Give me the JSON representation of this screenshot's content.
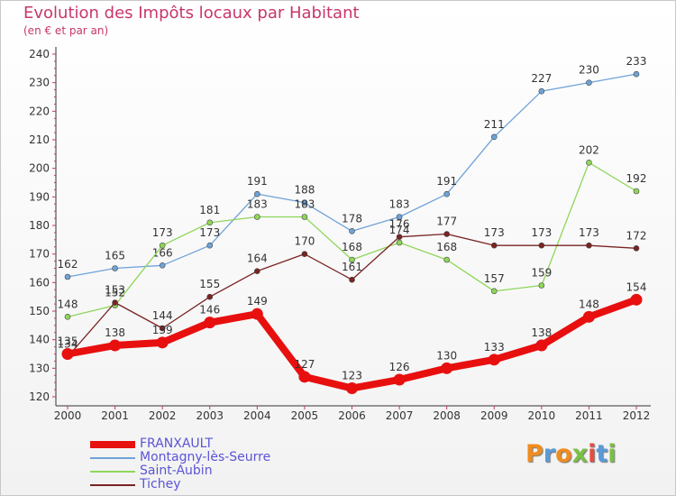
{
  "title": "Evolution des Impôts locaux par Habitant",
  "subtitle": "(en € et par an)",
  "logo": {
    "text": "Proxiti",
    "colors": [
      "#f08c1e",
      "#5a9ad8",
      "#f08c1e",
      "#7ac143",
      "#e84c3d",
      "#5a9ad8",
      "#7ac143"
    ]
  },
  "chart_data": {
    "type": "line",
    "x": [
      "2000",
      "2001",
      "2002",
      "2003",
      "2004",
      "2005",
      "2006",
      "2007",
      "2008",
      "2009",
      "2010",
      "2011",
      "2012"
    ],
    "ylim": [
      120,
      240
    ],
    "yticks": [
      "120",
      "130",
      "140",
      "150",
      "160",
      "170",
      "180",
      "190",
      "200",
      "210",
      "220",
      "230",
      "240"
    ],
    "grid": false,
    "legend_position": "bottom-left",
    "series": [
      {
        "name": "FRANXAULT",
        "color": "#e80f0f",
        "values": [
          135,
          138,
          139,
          146,
          149,
          127,
          123,
          126,
          130,
          133,
          138,
          148,
          154
        ],
        "labels": [
          "135",
          "138",
          "139",
          "146",
          "149",
          "127",
          "123",
          "126",
          "130",
          "133",
          "138",
          "148",
          "154"
        ]
      },
      {
        "name": "Montagny-lès-Seurre",
        "color": "#6fa3d8",
        "values": [
          162,
          165,
          166,
          173,
          191,
          188,
          178,
          183,
          191,
          211,
          227,
          230,
          233
        ],
        "labels": [
          "162",
          "165",
          "166",
          "173",
          "191",
          "188",
          "178",
          "183",
          "191",
          "211",
          "227",
          "230",
          "233"
        ]
      },
      {
        "name": "Saint-Aubin",
        "color": "#8fd65a",
        "values": [
          148,
          152,
          173,
          181,
          183,
          183,
          168,
          174,
          168,
          157,
          159,
          202,
          192
        ],
        "labels": [
          "148",
          "152",
          "173",
          "181",
          "183",
          "183",
          "168",
          "174",
          "168",
          "157",
          "159",
          "202",
          "192"
        ]
      },
      {
        "name": "Tichey",
        "color": "#7a2424",
        "values": [
          134,
          153,
          144,
          155,
          164,
          170,
          161,
          176,
          177,
          173,
          173,
          173,
          172
        ],
        "labels": [
          "134",
          "153",
          "144",
          "155",
          "164",
          "170",
          "161",
          "176",
          "177",
          "173",
          "173",
          "173",
          "172"
        ]
      }
    ]
  }
}
